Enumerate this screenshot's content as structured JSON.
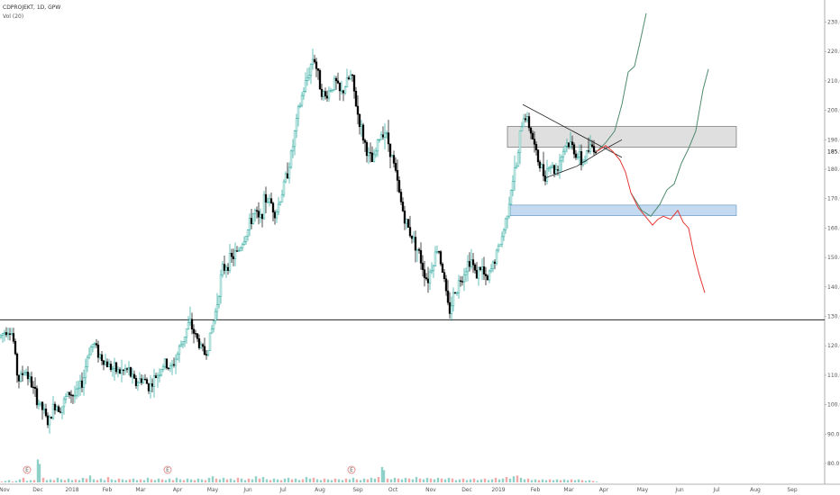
{
  "header": {
    "symbol": "CDPROJEKT, 1D, GPW",
    "volume_indicator": "Vol (20)"
  },
  "colors": {
    "up": "#26a69a",
    "down": "#000000",
    "bull_path": "#4f8a6e",
    "bear_path": "#e53935",
    "resistance_zone": "#d9d9d9",
    "support_zone": "#bcd6ee",
    "vol_up": "#8fd0c8",
    "vol_down": "#f5a6a6"
  },
  "chart_data": {
    "type": "candlestick",
    "title": "",
    "ylim": [
      76,
      236
    ],
    "y_ticks": [
      "80.0",
      "90.0",
      "100.0",
      "110.0",
      "120.0",
      "130.0",
      "140.0",
      "150.0",
      "160.0",
      "170.0",
      "180.0",
      "190.0",
      "200.0",
      "210.0",
      "220.0",
      "230.0"
    ],
    "y_tick_values": [
      80,
      90,
      100,
      110,
      120,
      130,
      140,
      150,
      160,
      170,
      180,
      190,
      200,
      210,
      220,
      230
    ],
    "last_price": "185.9",
    "last_price_value": 185.9,
    "x_labels": [
      {
        "label": "Nov",
        "t": 5
      },
      {
        "label": "Dec",
        "t": 42
      },
      {
        "label": "2018",
        "t": 80
      },
      {
        "label": "Feb",
        "t": 119
      },
      {
        "label": "Mar",
        "t": 156
      },
      {
        "label": "Apr",
        "t": 197
      },
      {
        "label": "May",
        "t": 236
      },
      {
        "label": "Jun",
        "t": 275
      },
      {
        "label": "Jul",
        "t": 314
      },
      {
        "label": "Aug",
        "t": 355
      },
      {
        "label": "Sep",
        "t": 397
      },
      {
        "label": "Oct",
        "t": 436
      },
      {
        "label": "Nov",
        "t": 478
      },
      {
        "label": "Dec",
        "t": 518
      },
      {
        "label": "2019",
        "t": 553
      },
      {
        "label": "Feb",
        "t": 594
      },
      {
        "label": "Mar",
        "t": 631
      },
      {
        "label": "Apr",
        "t": 670
      },
      {
        "label": "May",
        "t": 713
      },
      {
        "label": "Jun",
        "t": 754
      },
      {
        "label": "Jul",
        "t": 795
      },
      {
        "label": "Aug",
        "t": 838
      },
      {
        "label": "Sep",
        "t": 879
      }
    ],
    "price_path": [
      [
        0,
        123
      ],
      [
        8,
        126
      ],
      [
        14,
        124
      ],
      [
        20,
        108
      ],
      [
        28,
        112
      ],
      [
        36,
        106
      ],
      [
        42,
        101
      ],
      [
        48,
        98
      ],
      [
        54,
        93
      ],
      [
        60,
        100
      ],
      [
        68,
        99
      ],
      [
        76,
        104
      ],
      [
        84,
        103
      ],
      [
        92,
        108
      ],
      [
        98,
        118
      ],
      [
        104,
        121
      ],
      [
        110,
        117
      ],
      [
        118,
        114
      ],
      [
        126,
        112
      ],
      [
        134,
        111
      ],
      [
        142,
        112
      ],
      [
        150,
        107
      ],
      [
        158,
        109
      ],
      [
        166,
        106
      ],
      [
        174,
        110
      ],
      [
        182,
        114
      ],
      [
        190,
        112
      ],
      [
        198,
        118
      ],
      [
        204,
        123
      ],
      [
        210,
        128
      ],
      [
        216,
        124
      ],
      [
        222,
        120
      ],
      [
        228,
        117
      ],
      [
        234,
        124
      ],
      [
        240,
        133
      ],
      [
        246,
        145
      ],
      [
        252,
        148
      ],
      [
        258,
        150
      ],
      [
        264,
        152
      ],
      [
        270,
        156
      ],
      [
        276,
        160
      ],
      [
        282,
        166
      ],
      [
        288,
        162
      ],
      [
        294,
        170
      ],
      [
        300,
        169
      ],
      [
        306,
        165
      ],
      [
        312,
        171
      ],
      [
        318,
        178
      ],
      [
        324,
        186
      ],
      [
        330,
        198
      ],
      [
        336,
        206
      ],
      [
        342,
        212
      ],
      [
        348,
        219
      ],
      [
        354,
        210
      ],
      [
        360,
        204
      ],
      [
        366,
        207
      ],
      [
        372,
        210
      ],
      [
        378,
        205
      ],
      [
        384,
        209
      ],
      [
        390,
        212
      ],
      [
        396,
        200
      ],
      [
        402,
        192
      ],
      [
        408,
        185
      ],
      [
        414,
        182
      ],
      [
        420,
        190
      ],
      [
        426,
        194
      ],
      [
        432,
        188
      ],
      [
        438,
        180
      ],
      [
        444,
        170
      ],
      [
        450,
        162
      ],
      [
        456,
        158
      ],
      [
        462,
        154
      ],
      [
        468,
        148
      ],
      [
        474,
        142
      ],
      [
        480,
        148
      ],
      [
        486,
        154
      ],
      [
        492,
        144
      ],
      [
        498,
        131
      ],
      [
        504,
        138
      ],
      [
        510,
        142
      ],
      [
        516,
        146
      ],
      [
        522,
        150
      ],
      [
        528,
        144
      ],
      [
        534,
        147
      ],
      [
        540,
        141
      ],
      [
        546,
        147
      ],
      [
        552,
        152
      ],
      [
        558,
        158
      ],
      [
        562,
        164
      ],
      [
        566,
        172
      ],
      [
        570,
        178
      ],
      [
        574,
        182
      ],
      [
        578,
        194
      ],
      [
        582,
        199
      ],
      [
        586,
        196
      ],
      [
        590,
        192
      ],
      [
        594,
        186
      ],
      [
        598,
        182
      ],
      [
        604,
        178
      ],
      [
        610,
        182
      ],
      [
        616,
        179
      ],
      [
        622,
        184
      ],
      [
        628,
        189
      ],
      [
        634,
        188
      ],
      [
        640,
        185
      ],
      [
        646,
        182
      ],
      [
        652,
        186
      ],
      [
        658,
        188
      ],
      [
        662,
        185.9
      ]
    ],
    "scenario_bull_1": [
      [
        662,
        186
      ],
      [
        672,
        189
      ],
      [
        682,
        193
      ],
      [
        690,
        202
      ],
      [
        697,
        213
      ],
      [
        704,
        215
      ],
      [
        710,
        223
      ],
      [
        717,
        233
      ]
    ],
    "scenario_bull_2": [
      [
        700,
        172
      ],
      [
        712,
        166
      ],
      [
        722,
        164
      ],
      [
        732,
        168
      ],
      [
        740,
        173
      ],
      [
        748,
        175
      ],
      [
        756,
        182
      ],
      [
        764,
        187
      ],
      [
        772,
        193
      ],
      [
        780,
        207
      ],
      [
        786,
        214
      ]
    ],
    "scenario_bear": [
      [
        662,
        186
      ],
      [
        672,
        188
      ],
      [
        680,
        186
      ],
      [
        688,
        183
      ],
      [
        694,
        179
      ],
      [
        700,
        172
      ],
      [
        708,
        167
      ],
      [
        716,
        164
      ],
      [
        724,
        161
      ],
      [
        730,
        163
      ],
      [
        736,
        164
      ],
      [
        744,
        163
      ],
      [
        752,
        166
      ],
      [
        758,
        162
      ],
      [
        764,
        160
      ],
      [
        770,
        151
      ],
      [
        776,
        144
      ],
      [
        782,
        138
      ]
    ],
    "triangle_upper": [
      [
        580,
        202
      ],
      [
        690,
        184
      ]
    ],
    "triangle_lower": [
      [
        605,
        177
      ],
      [
        640,
        181
      ],
      [
        672,
        187
      ],
      [
        690,
        190
      ]
    ],
    "resistance_zone": {
      "t0": 563,
      "t1": 817,
      "top": 194.5,
      "bottom": 187.5
    },
    "support_zone": {
      "t0": 566,
      "t1": 817,
      "top": 167.8,
      "bottom": 164.2
    },
    "horizontal_level": 128.8,
    "volume": [
      [
        2,
        1
      ],
      [
        6,
        2
      ],
      [
        10,
        3
      ],
      [
        14,
        1
      ],
      [
        18,
        2
      ],
      [
        22,
        4
      ],
      [
        26,
        6
      ],
      [
        30,
        2
      ],
      [
        34,
        3
      ],
      [
        38,
        3
      ],
      [
        42,
        30
      ],
      [
        44,
        24
      ],
      [
        48,
        6
      ],
      [
        52,
        3
      ],
      [
        56,
        4
      ],
      [
        60,
        3
      ],
      [
        64,
        6
      ],
      [
        68,
        4
      ],
      [
        72,
        3
      ],
      [
        76,
        5
      ],
      [
        80,
        3
      ],
      [
        84,
        4
      ],
      [
        88,
        3
      ],
      [
        92,
        6
      ],
      [
        96,
        5
      ],
      [
        100,
        9
      ],
      [
        104,
        4
      ],
      [
        108,
        3
      ],
      [
        112,
        5
      ],
      [
        116,
        3
      ],
      [
        120,
        7
      ],
      [
        124,
        4
      ],
      [
        128,
        3
      ],
      [
        132,
        5
      ],
      [
        136,
        4
      ],
      [
        140,
        3
      ],
      [
        144,
        4
      ],
      [
        148,
        5
      ],
      [
        152,
        3
      ],
      [
        156,
        4
      ],
      [
        160,
        3
      ],
      [
        164,
        6
      ],
      [
        168,
        4
      ],
      [
        172,
        3
      ],
      [
        176,
        5
      ],
      [
        180,
        4
      ],
      [
        184,
        3
      ],
      [
        188,
        5
      ],
      [
        192,
        3
      ],
      [
        196,
        6
      ],
      [
        200,
        4
      ],
      [
        204,
        3
      ],
      [
        208,
        5
      ],
      [
        212,
        4
      ],
      [
        216,
        3
      ],
      [
        220,
        5
      ],
      [
        224,
        4
      ],
      [
        228,
        3
      ],
      [
        232,
        6
      ],
      [
        236,
        8
      ],
      [
        240,
        5
      ],
      [
        244,
        4
      ],
      [
        248,
        6
      ],
      [
        252,
        4
      ],
      [
        256,
        5
      ],
      [
        260,
        3
      ],
      [
        264,
        6
      ],
      [
        268,
        5
      ],
      [
        272,
        3
      ],
      [
        276,
        5
      ],
      [
        280,
        4
      ],
      [
        284,
        8
      ],
      [
        288,
        5
      ],
      [
        292,
        7
      ],
      [
        296,
        4
      ],
      [
        300,
        3
      ],
      [
        304,
        5
      ],
      [
        308,
        4
      ],
      [
        312,
        3
      ],
      [
        316,
        5
      ],
      [
        320,
        6
      ],
      [
        324,
        4
      ],
      [
        328,
        5
      ],
      [
        332,
        3
      ],
      [
        336,
        4
      ],
      [
        340,
        7
      ],
      [
        344,
        5
      ],
      [
        348,
        6
      ],
      [
        352,
        4
      ],
      [
        356,
        3
      ],
      [
        360,
        5
      ],
      [
        364,
        4
      ],
      [
        368,
        3
      ],
      [
        372,
        5
      ],
      [
        376,
        4
      ],
      [
        380,
        3
      ],
      [
        384,
        5
      ],
      [
        388,
        4
      ],
      [
        392,
        6
      ],
      [
        396,
        4
      ],
      [
        400,
        3
      ],
      [
        404,
        5
      ],
      [
        408,
        4
      ],
      [
        412,
        6
      ],
      [
        416,
        5
      ],
      [
        420,
        7
      ],
      [
        424,
        20
      ],
      [
        426,
        16
      ],
      [
        430,
        5
      ],
      [
        434,
        4
      ],
      [
        438,
        6
      ],
      [
        442,
        5
      ],
      [
        446,
        4
      ],
      [
        450,
        6
      ],
      [
        454,
        5
      ],
      [
        458,
        4
      ],
      [
        462,
        7
      ],
      [
        466,
        5
      ],
      [
        470,
        4
      ],
      [
        474,
        6
      ],
      [
        478,
        5
      ],
      [
        482,
        4
      ],
      [
        486,
        6
      ],
      [
        490,
        5
      ],
      [
        494,
        4
      ],
      [
        498,
        6
      ],
      [
        502,
        5
      ],
      [
        506,
        3
      ],
      [
        510,
        4
      ],
      [
        514,
        5
      ],
      [
        518,
        3
      ],
      [
        522,
        4
      ],
      [
        526,
        5
      ],
      [
        530,
        3
      ],
      [
        534,
        4
      ],
      [
        538,
        5
      ],
      [
        542,
        3
      ],
      [
        546,
        4
      ],
      [
        550,
        6
      ],
      [
        554,
        4
      ],
      [
        558,
        5
      ],
      [
        562,
        7
      ],
      [
        566,
        5
      ],
      [
        570,
        8
      ],
      [
        574,
        9
      ],
      [
        578,
        6
      ],
      [
        582,
        4
      ],
      [
        586,
        5
      ],
      [
        590,
        3
      ],
      [
        594,
        4
      ],
      [
        598,
        3
      ],
      [
        602,
        4
      ],
      [
        606,
        3
      ],
      [
        610,
        4
      ],
      [
        614,
        3
      ],
      [
        618,
        4
      ],
      [
        622,
        3
      ],
      [
        626,
        4
      ],
      [
        630,
        3
      ],
      [
        634,
        4
      ],
      [
        638,
        3
      ],
      [
        642,
        4
      ],
      [
        646,
        3
      ],
      [
        650,
        2
      ],
      [
        654,
        3
      ],
      [
        658,
        2
      ],
      [
        662,
        1
      ]
    ],
    "volume_ymax": 32,
    "event_markers": [
      {
        "t": 30,
        "label": "E"
      },
      {
        "t": 186,
        "label": "E"
      },
      {
        "t": 390,
        "label": "E"
      }
    ]
  }
}
